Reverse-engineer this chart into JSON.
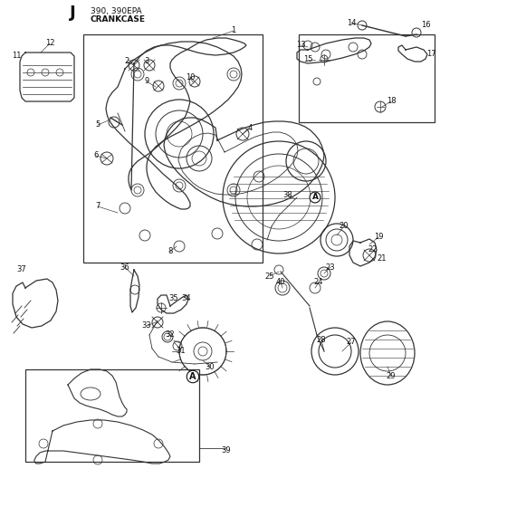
{
  "title": "J",
  "subtitle1": "390, 390EPA",
  "subtitle2": "CRANKCASE",
  "bg_color": "#ffffff",
  "line_color": "#333333",
  "fig_width": 5.6,
  "fig_height": 5.6,
  "dpi": 100,
  "lw_main": 0.9,
  "lw_thin": 0.5,
  "lw_thick": 1.2,
  "fontsize_label": 6.0,
  "fontsize_title": 13,
  "fontsize_sub": 6.5
}
